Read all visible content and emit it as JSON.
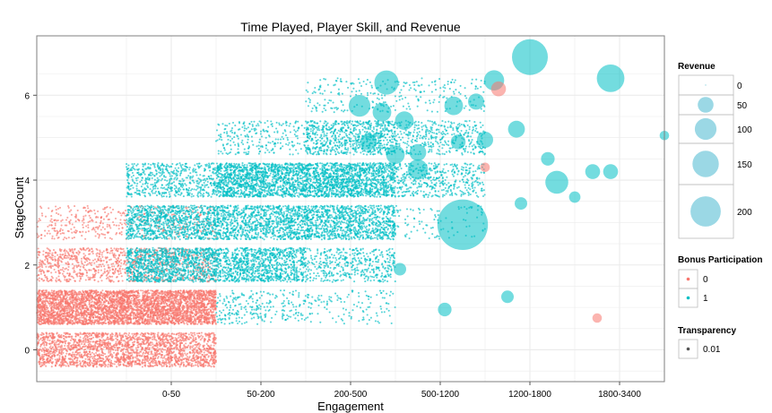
{
  "chart_data": {
    "type": "scatter",
    "title": "Time Played, Player Skill, and Revenue",
    "xlabel": "Engagement",
    "ylabel": "StageCount",
    "x_categories": [
      "0-50",
      "50-200",
      "200-500",
      "500-1200",
      "1200-1800",
      "1800-3400"
    ],
    "xlim": [
      -0.5,
      6.5
    ],
    "ylim": [
      -0.75,
      7.4
    ],
    "y_ticks": [
      0,
      2,
      4,
      6
    ],
    "grid": true,
    "jitter": "horizontal and vertical jitter within each category/stage cell",
    "colors": {
      "bonus_0": "#F8766D",
      "bonus_1": "#00BFC4",
      "grid": "#ebebeb",
      "panel_border": "#7f7f7f"
    },
    "density_cells": [
      {
        "bonus": 0,
        "x_index": 0,
        "stage": 0,
        "density": 0.9
      },
      {
        "bonus": 0,
        "x_index": 0,
        "stage": 1,
        "density": 1.6
      },
      {
        "bonus": 0,
        "x_index": 0,
        "stage": 2,
        "density": 0.45
      },
      {
        "bonus": 0,
        "x_index": 0,
        "stage": 3,
        "density": 0.2
      },
      {
        "bonus": 0,
        "x_index": 1,
        "stage": 0,
        "density": 0.9
      },
      {
        "bonus": 0,
        "x_index": 1,
        "stage": 1,
        "density": 1.6
      },
      {
        "bonus": 0,
        "x_index": 1,
        "stage": 2,
        "density": 0.35
      },
      {
        "bonus": 0,
        "x_index": 1,
        "stage": 3,
        "density": 0.12
      },
      {
        "bonus": 1,
        "x_index": 1,
        "stage": 2,
        "density": 0.9
      },
      {
        "bonus": 1,
        "x_index": 1,
        "stage": 3,
        "density": 0.8
      },
      {
        "bonus": 1,
        "x_index": 1,
        "stage": 4,
        "density": 0.45
      },
      {
        "bonus": 1,
        "x_index": 2,
        "stage": 1,
        "density": 0.2
      },
      {
        "bonus": 1,
        "x_index": 2,
        "stage": 2,
        "density": 0.8
      },
      {
        "bonus": 1,
        "x_index": 2,
        "stage": 3,
        "density": 0.8
      },
      {
        "bonus": 1,
        "x_index": 2,
        "stage": 4,
        "density": 1.1
      },
      {
        "bonus": 1,
        "x_index": 2,
        "stage": 5,
        "density": 0.2
      },
      {
        "bonus": 1,
        "x_index": 3,
        "stage": 1,
        "density": 0.1
      },
      {
        "bonus": 1,
        "x_index": 3,
        "stage": 2,
        "density": 0.35
      },
      {
        "bonus": 1,
        "x_index": 3,
        "stage": 3,
        "density": 0.8
      },
      {
        "bonus": 1,
        "x_index": 3,
        "stage": 4,
        "density": 1.1
      },
      {
        "bonus": 1,
        "x_index": 3,
        "stage": 5,
        "density": 0.6
      },
      {
        "bonus": 1,
        "x_index": 3,
        "stage": 6,
        "density": 0.12
      },
      {
        "bonus": 1,
        "x_index": 4,
        "stage": 4,
        "density": 0.35
      },
      {
        "bonus": 1,
        "x_index": 4,
        "stage": 5,
        "density": 0.3
      },
      {
        "bonus": 1,
        "x_index": 4,
        "stage": 6,
        "density": 0.1
      },
      {
        "bonus": 1,
        "x_index": 4,
        "stage": 3,
        "density": 0.08
      }
    ],
    "points": [
      {
        "x": 4.25,
        "y": 2.95,
        "revenue": 215,
        "bonus": 1
      },
      {
        "x": 5.0,
        "y": 6.9,
        "revenue": 105,
        "bonus": 1
      },
      {
        "x": 5.9,
        "y": 6.4,
        "revenue": 60,
        "bonus": 1
      },
      {
        "x": 5.3,
        "y": 3.95,
        "revenue": 40,
        "bonus": 1
      },
      {
        "x": 4.15,
        "y": 5.75,
        "revenue": 25,
        "bonus": 1
      },
      {
        "x": 3.4,
        "y": 6.3,
        "revenue": 45,
        "bonus": 1
      },
      {
        "x": 3.1,
        "y": 5.75,
        "revenue": 35,
        "bonus": 1
      },
      {
        "x": 3.35,
        "y": 5.6,
        "revenue": 25,
        "bonus": 1
      },
      {
        "x": 3.6,
        "y": 5.4,
        "revenue": 25,
        "bonus": 1
      },
      {
        "x": 3.2,
        "y": 4.9,
        "revenue": 20,
        "bonus": 1
      },
      {
        "x": 4.6,
        "y": 6.35,
        "revenue": 30,
        "bonus": 1
      },
      {
        "x": 3.5,
        "y": 4.6,
        "revenue": 25,
        "bonus": 1
      },
      {
        "x": 3.75,
        "y": 4.25,
        "revenue": 30,
        "bonus": 1
      },
      {
        "x": 3.75,
        "y": 4.65,
        "revenue": 20,
        "bonus": 1
      },
      {
        "x": 4.4,
        "y": 5.85,
        "revenue": 18,
        "bonus": 1
      },
      {
        "x": 4.85,
        "y": 5.2,
        "revenue": 20,
        "bonus": 1
      },
      {
        "x": 4.5,
        "y": 4.95,
        "revenue": 18,
        "bonus": 1
      },
      {
        "x": 4.2,
        "y": 4.9,
        "revenue": 15,
        "bonus": 1
      },
      {
        "x": 5.7,
        "y": 4.2,
        "revenue": 15,
        "bonus": 1
      },
      {
        "x": 5.9,
        "y": 4.2,
        "revenue": 15,
        "bonus": 1
      },
      {
        "x": 5.2,
        "y": 4.5,
        "revenue": 12,
        "bonus": 1
      },
      {
        "x": 4.9,
        "y": 3.45,
        "revenue": 10,
        "bonus": 1
      },
      {
        "x": 4.65,
        "y": 6.15,
        "revenue": 15,
        "bonus": 0
      },
      {
        "x": 4.5,
        "y": 4.3,
        "revenue": 5,
        "bonus": 0
      },
      {
        "x": 5.75,
        "y": 0.75,
        "revenue": 5,
        "bonus": 0
      },
      {
        "x": 4.75,
        "y": 1.25,
        "revenue": 10,
        "bonus": 1
      },
      {
        "x": 4.05,
        "y": 0.95,
        "revenue": 12,
        "bonus": 1
      },
      {
        "x": 6.5,
        "y": 5.05,
        "revenue": 5,
        "bonus": 1
      },
      {
        "x": 5.5,
        "y": 3.6,
        "revenue": 8,
        "bonus": 1
      },
      {
        "x": 3.55,
        "y": 1.9,
        "revenue": 10,
        "bonus": 1
      }
    ],
    "legend": {
      "placement": "right",
      "revenue": {
        "title": "Revenue",
        "labels": [
          "0",
          "50",
          "100",
          "150",
          "200"
        ],
        "values": [
          0,
          50,
          100,
          150,
          200
        ],
        "swatch_color": "#9BD8E5"
      },
      "bonus": {
        "title": "Bonus Participation",
        "labels": [
          "0",
          "1"
        ]
      },
      "transparency": {
        "title": "Transparency",
        "labels": [
          "0.01"
        ]
      }
    }
  }
}
